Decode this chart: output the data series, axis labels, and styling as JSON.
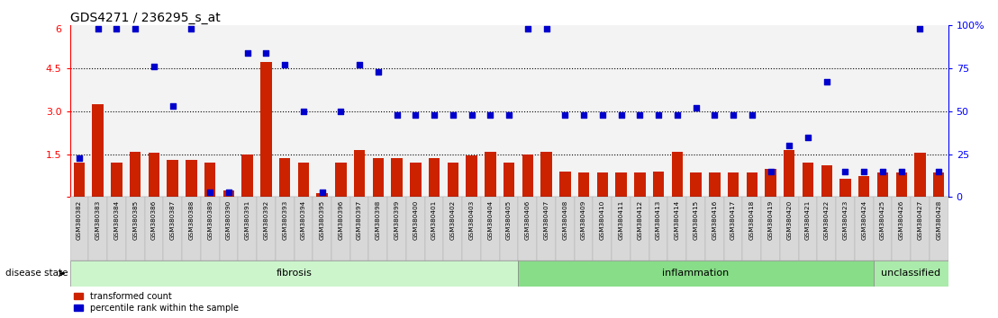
{
  "title": "GDS4271 / 236295_s_at",
  "samples": [
    "GSM380382",
    "GSM380383",
    "GSM380384",
    "GSM380385",
    "GSM380386",
    "GSM380387",
    "GSM380388",
    "GSM380389",
    "GSM380390",
    "GSM380391",
    "GSM380392",
    "GSM380393",
    "GSM380394",
    "GSM380395",
    "GSM380396",
    "GSM380397",
    "GSM380398",
    "GSM380399",
    "GSM380400",
    "GSM380401",
    "GSM380402",
    "GSM380403",
    "GSM380404",
    "GSM380405",
    "GSM380406",
    "GSM380407",
    "GSM380408",
    "GSM380409",
    "GSM380410",
    "GSM380411",
    "GSM380412",
    "GSM380413",
    "GSM380414",
    "GSM380415",
    "GSM380416",
    "GSM380417",
    "GSM380418",
    "GSM380419",
    "GSM380420",
    "GSM380421",
    "GSM380422",
    "GSM380423",
    "GSM380424",
    "GSM380425",
    "GSM380426",
    "GSM380427",
    "GSM380428"
  ],
  "bar_values": [
    1.2,
    3.25,
    1.2,
    1.6,
    1.55,
    1.3,
    1.3,
    1.2,
    0.22,
    1.5,
    4.72,
    1.35,
    1.2,
    0.15,
    1.2,
    1.65,
    1.35,
    1.35,
    1.2,
    1.35,
    1.2,
    1.45,
    1.6,
    1.2,
    1.5,
    1.6,
    0.9,
    0.85,
    0.85,
    0.85,
    0.85,
    0.9,
    1.6,
    0.85,
    0.85,
    0.85,
    0.85,
    1.0,
    1.65,
    1.2,
    1.1,
    0.65,
    0.75,
    0.85,
    0.85,
    1.55,
    0.85
  ],
  "scatter_pct": [
    23,
    98,
    98,
    98,
    76,
    53,
    98,
    3,
    3,
    84,
    84,
    77,
    50,
    3,
    50,
    77,
    73,
    48,
    48,
    48,
    48,
    48,
    48,
    48,
    98,
    98,
    48,
    48,
    48,
    48,
    48,
    48,
    48,
    52,
    48,
    48,
    48,
    15,
    30,
    35,
    67,
    15,
    15,
    15,
    15,
    98,
    15
  ],
  "groups": [
    {
      "name": "fibrosis",
      "start": 0,
      "end": 24,
      "color": "#ccf5cc"
    },
    {
      "name": "inflammation",
      "start": 24,
      "end": 43,
      "color": "#88dd88"
    },
    {
      "name": "unclassified",
      "start": 43,
      "end": 47,
      "color": "#aaeaaa"
    }
  ],
  "bar_color": "#cc2200",
  "scatter_color": "#0000cc",
  "ylim_left": [
    0,
    6
  ],
  "ylim_right": [
    0,
    100
  ],
  "yticks_left": [
    0,
    1.5,
    3.0,
    4.5
  ],
  "yticks_right": [
    0,
    25,
    50,
    75,
    100
  ],
  "dotted_lines_pct": [
    25,
    50,
    75
  ],
  "title_fontsize": 10,
  "legend_labels": [
    "transformed count",
    "percentile rank within the sample"
  ],
  "disease_state_label": "disease state"
}
